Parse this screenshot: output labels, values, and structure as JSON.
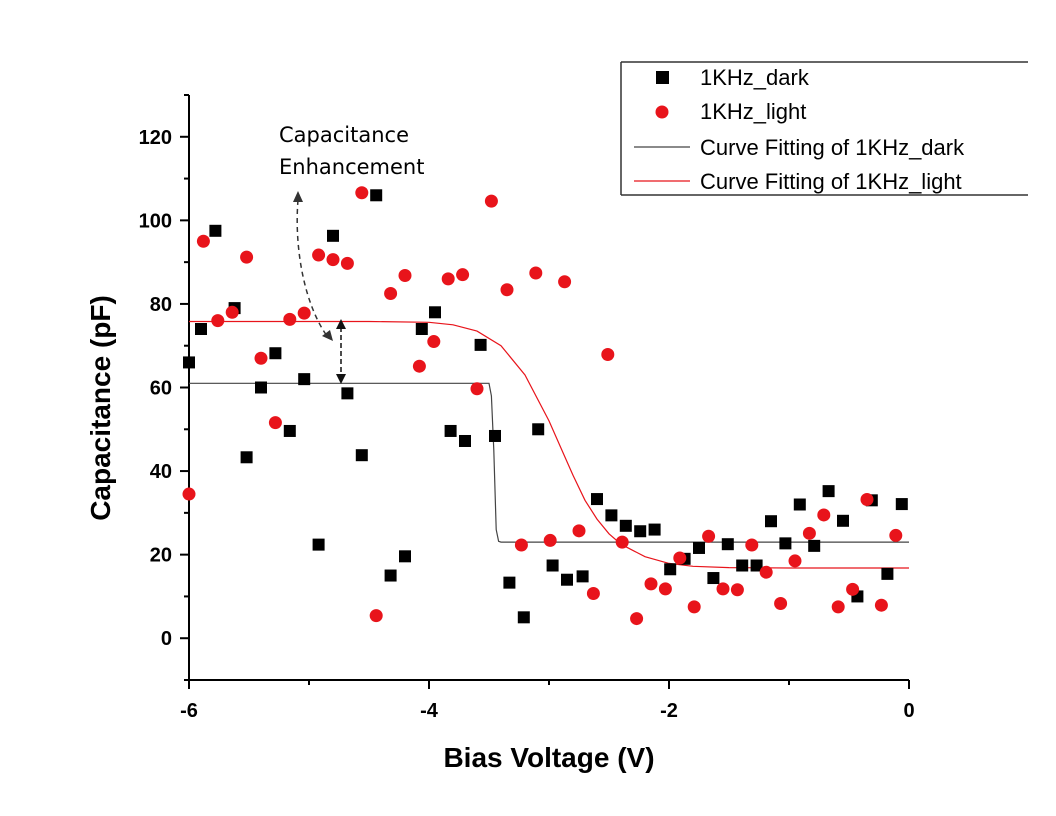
{
  "chart_data": {
    "type": "scatter",
    "title": "",
    "xlabel": "Bias Voltage (V)",
    "ylabel": "Capacitance (pF)",
    "xlim": [
      -6,
      0
    ],
    "ylim": [
      -10,
      130
    ],
    "xticks": [
      -6,
      -4,
      -2,
      0
    ],
    "xtick_labels": [
      "-6",
      "-4",
      "-2",
      "0"
    ],
    "yticks": [
      0,
      20,
      40,
      60,
      80,
      100,
      120
    ],
    "ytick_labels": [
      "0",
      "20",
      "40",
      "60",
      "80",
      "100",
      "120"
    ],
    "grid": false,
    "legend_position": "top-right",
    "series": [
      {
        "name": "1KHz_dark",
        "kind": "scatter",
        "marker": "square",
        "color": "#000000",
        "points": [
          [
            -6.0,
            66
          ],
          [
            -5.9,
            74
          ],
          [
            -5.78,
            97.5
          ],
          [
            -5.62,
            79
          ],
          [
            -5.52,
            43.3
          ],
          [
            -5.4,
            60
          ],
          [
            -5.28,
            68.2
          ],
          [
            -5.16,
            49.6
          ],
          [
            -5.04,
            62
          ],
          [
            -4.92,
            22.4
          ],
          [
            -4.8,
            96.3
          ],
          [
            -4.68,
            58.6
          ],
          [
            -4.56,
            43.8
          ],
          [
            -4.44,
            106
          ],
          [
            -4.32,
            15
          ],
          [
            -4.2,
            19.6
          ],
          [
            -4.06,
            74
          ],
          [
            -3.95,
            78
          ],
          [
            -3.82,
            49.6
          ],
          [
            -3.7,
            47.2
          ],
          [
            -3.57,
            70.2
          ],
          [
            -3.45,
            48.4
          ],
          [
            -3.33,
            13.3
          ],
          [
            -3.21,
            5
          ],
          [
            -3.09,
            50
          ],
          [
            -2.97,
            17.4
          ],
          [
            -2.85,
            14
          ],
          [
            -2.72,
            14.8
          ],
          [
            -2.6,
            33.3
          ],
          [
            -2.48,
            29.4
          ],
          [
            -2.36,
            26.9
          ],
          [
            -2.24,
            25.6
          ],
          [
            -2.12,
            26
          ],
          [
            -1.99,
            16.5
          ],
          [
            -1.87,
            19
          ],
          [
            -1.75,
            21.6
          ],
          [
            -1.63,
            14.4
          ],
          [
            -1.51,
            22.5
          ],
          [
            -1.39,
            17.4
          ],
          [
            -1.27,
            17.4
          ],
          [
            -1.15,
            28
          ],
          [
            -1.03,
            22.7
          ],
          [
            -0.91,
            32
          ],
          [
            -0.79,
            22.1
          ],
          [
            -0.67,
            35.2
          ],
          [
            -0.55,
            28.1
          ],
          [
            -0.43,
            10
          ],
          [
            -0.31,
            33
          ],
          [
            -0.18,
            15.4
          ],
          [
            -0.06,
            32.1
          ]
        ]
      },
      {
        "name": "1KHz_light",
        "kind": "scatter",
        "marker": "circle",
        "color": "#e8141b",
        "points": [
          [
            -6.0,
            34.5
          ],
          [
            -5.88,
            95
          ],
          [
            -5.76,
            76
          ],
          [
            -5.64,
            78
          ],
          [
            -5.52,
            91.2
          ],
          [
            -5.4,
            67
          ],
          [
            -5.28,
            51.6
          ],
          [
            -5.16,
            76.3
          ],
          [
            -5.04,
            77.8
          ],
          [
            -4.92,
            91.7
          ],
          [
            -4.8,
            90.6
          ],
          [
            -4.68,
            89.7
          ],
          [
            -4.56,
            106.6
          ],
          [
            -4.44,
            5.4
          ],
          [
            -4.32,
            82.5
          ],
          [
            -4.2,
            86.8
          ],
          [
            -4.08,
            65.1
          ],
          [
            -3.96,
            71
          ],
          [
            -3.84,
            86
          ],
          [
            -3.72,
            87
          ],
          [
            -3.6,
            59.7
          ],
          [
            -3.48,
            104.6
          ],
          [
            -3.35,
            83.4
          ],
          [
            -3.23,
            22.3
          ],
          [
            -3.11,
            87.4
          ],
          [
            -2.99,
            23.4
          ],
          [
            -2.87,
            85.3
          ],
          [
            -2.75,
            25.7
          ],
          [
            -2.63,
            10.7
          ],
          [
            -2.51,
            67.9
          ],
          [
            -2.39,
            23
          ],
          [
            -2.27,
            4.7
          ],
          [
            -2.15,
            13
          ],
          [
            -2.03,
            11.8
          ],
          [
            -1.91,
            19.2
          ],
          [
            -1.79,
            7.5
          ],
          [
            -1.67,
            24.4
          ],
          [
            -1.55,
            11.8
          ],
          [
            -1.43,
            11.6
          ],
          [
            -1.31,
            22.3
          ],
          [
            -1.19,
            15.8
          ],
          [
            -1.07,
            8.3
          ],
          [
            -0.95,
            18.5
          ],
          [
            -0.83,
            25.1
          ],
          [
            -0.71,
            29.5
          ],
          [
            -0.59,
            7.5
          ],
          [
            -0.47,
            11.7
          ],
          [
            -0.35,
            33.2
          ],
          [
            -0.23,
            7.9
          ],
          [
            -0.11,
            24.6
          ]
        ]
      },
      {
        "name": "Curve Fitting of 1KHz_dark",
        "kind": "line",
        "color": "#444444",
        "points": [
          [
            -6.0,
            61
          ],
          [
            -3.5,
            61
          ],
          [
            -3.48,
            58
          ],
          [
            -3.46,
            45
          ],
          [
            -3.44,
            26
          ],
          [
            -3.42,
            23.2
          ],
          [
            -3.4,
            23
          ],
          [
            0.0,
            23
          ]
        ]
      },
      {
        "name": "Curve Fitting of 1KHz_light",
        "kind": "line",
        "color": "#e8141b",
        "points": [
          [
            -6.0,
            75.8
          ],
          [
            -4.5,
            75.8
          ],
          [
            -4.0,
            75.6
          ],
          [
            -3.8,
            75
          ],
          [
            -3.6,
            73.5
          ],
          [
            -3.4,
            70
          ],
          [
            -3.2,
            63
          ],
          [
            -3.0,
            52
          ],
          [
            -2.9,
            45.5
          ],
          [
            -2.8,
            39
          ],
          [
            -2.7,
            33
          ],
          [
            -2.6,
            28.5
          ],
          [
            -2.5,
            25
          ],
          [
            -2.4,
            22.5
          ],
          [
            -2.2,
            19.5
          ],
          [
            -2.0,
            17.9
          ],
          [
            -1.8,
            17.2
          ],
          [
            -1.5,
            16.9
          ],
          [
            -1.0,
            16.8
          ],
          [
            0.0,
            16.8
          ]
        ]
      }
    ],
    "annotations": [
      {
        "lines": [
          "Capacitance",
          "Enhancement"
        ],
        "anchor_data": [
          -4.6,
          128
        ]
      }
    ]
  }
}
